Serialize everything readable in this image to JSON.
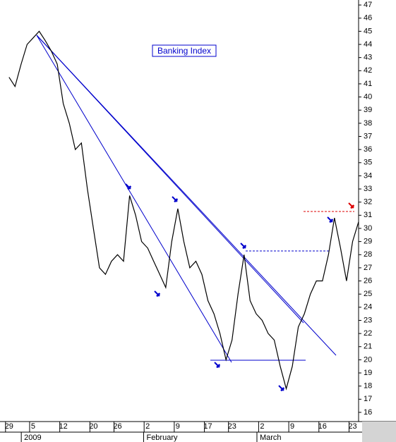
{
  "chart_data": {
    "type": "line",
    "title": "Banking Index",
    "x": [
      0,
      1,
      2,
      3,
      4,
      5,
      6,
      7,
      8,
      9,
      10,
      11,
      12,
      13,
      14,
      15,
      16,
      17,
      18,
      19,
      20,
      21,
      22,
      23,
      24,
      25,
      26,
      27,
      28,
      29,
      30,
      31,
      32,
      33,
      34,
      35,
      36,
      37,
      38,
      39,
      40,
      41,
      42,
      43,
      44,
      45,
      46,
      47,
      48,
      49,
      50,
      51,
      52,
      53,
      54,
      55,
      56,
      57,
      58
    ],
    "series": [
      {
        "name": "Banking Index",
        "color": "#000000",
        "values": [
          41.5,
          40.8,
          42.5,
          44,
          44.5,
          45,
          44.3,
          43.5,
          42.5,
          39.5,
          38,
          36,
          36.5,
          33,
          30,
          27,
          26.5,
          27.5,
          28,
          27.5,
          32.5,
          31,
          29,
          28.5,
          27.5,
          26.5,
          25.5,
          29,
          31.5,
          29,
          27,
          27.5,
          26.5,
          24.5,
          23.5,
          22,
          20,
          21.5,
          25,
          28,
          24.5,
          23.5,
          23,
          22,
          21.5,
          19.5,
          17.8,
          19.5,
          22.5,
          23.5,
          25,
          26,
          26,
          28,
          30.8,
          28.5,
          26,
          29,
          30.5
        ]
      }
    ],
    "xlim": [
      -1.5,
      58
    ],
    "xticks": [
      {
        "value": 0,
        "label": "29"
      },
      {
        "value": 4,
        "label": "5"
      },
      {
        "value": 9,
        "label": "12"
      },
      {
        "value": 14,
        "label": "20"
      },
      {
        "value": 18,
        "label": "26"
      },
      {
        "value": 23,
        "label": "2"
      },
      {
        "value": 28,
        "label": "9"
      },
      {
        "value": 33,
        "label": "17"
      },
      {
        "value": 37,
        "label": "23"
      },
      {
        "value": 42,
        "label": "2"
      },
      {
        "value": 47,
        "label": "9"
      },
      {
        "value": 52,
        "label": "16"
      },
      {
        "value": 57,
        "label": "23"
      }
    ],
    "months": [
      {
        "value": 2.5,
        "label": "2009"
      },
      {
        "value": 22.8,
        "label": "February"
      },
      {
        "value": 41.6,
        "label": "March"
      }
    ],
    "ylim": [
      15.3,
      47.38
    ],
    "yticks": [
      16,
      17,
      18,
      19,
      20,
      21,
      22,
      23,
      24,
      25,
      26,
      27,
      28,
      29,
      30,
      31,
      32,
      33,
      34,
      35,
      36,
      37,
      38,
      39,
      40,
      41,
      42,
      43,
      44,
      45,
      46,
      47
    ]
  }
}
